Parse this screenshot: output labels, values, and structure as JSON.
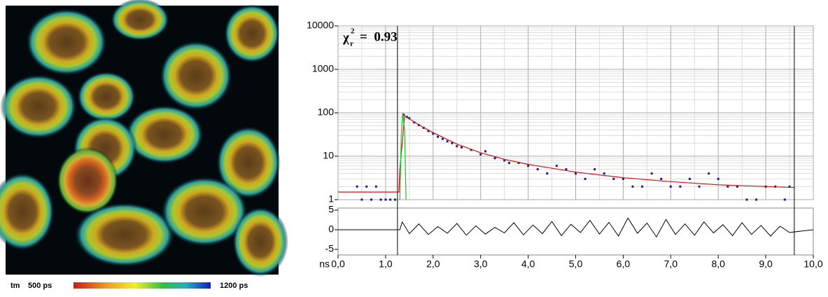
{
  "chart_data": {
    "type": "scatter",
    "annotation_symbol": "χ",
    "annotation_sub": "r",
    "annotation_sup": "2",
    "annotation_text": "=  0.93",
    "xlabel": "ns",
    "xlim": [
      0,
      10
    ],
    "xticks": [
      {
        "value": 0,
        "label": "0,0"
      },
      {
        "value": 1,
        "label": "1,0"
      },
      {
        "value": 2,
        "label": "2,0"
      },
      {
        "value": 3,
        "label": "3,0"
      },
      {
        "value": 4,
        "label": "4,0"
      },
      {
        "value": 5,
        "label": "5,0"
      },
      {
        "value": 6,
        "label": "6,0"
      },
      {
        "value": 7,
        "label": "7,0"
      },
      {
        "value": 8,
        "label": "8,0"
      },
      {
        "value": 9,
        "label": "9,0"
      },
      {
        "value": 10,
        "label": "10,0"
      }
    ],
    "ylim": [
      1,
      10000
    ],
    "yticks": [
      1,
      10,
      100,
      1000,
      10000
    ],
    "ylog": true,
    "grid": true,
    "cursors": [
      1.25,
      9.6
    ],
    "series": [
      {
        "color": "#1c1c8e",
        "style": "points",
        "x": [
          0.4,
          0.5,
          0.6,
          0.7,
          0.8,
          0.9,
          1.0,
          1.1,
          1.2,
          1.38,
          1.45,
          1.5,
          1.6,
          1.7,
          1.8,
          1.9,
          2.0,
          2.1,
          2.2,
          2.3,
          2.4,
          2.5,
          2.6,
          2.8,
          3.0,
          3.1,
          3.3,
          3.5,
          3.6,
          3.8,
          4.0,
          4.2,
          4.4,
          4.6,
          4.8,
          5.0,
          5.2,
          5.4,
          5.6,
          5.8,
          6.0,
          6.2,
          6.4,
          6.6,
          6.8,
          7.0,
          7.2,
          7.4,
          7.6,
          7.8,
          8.0,
          8.2,
          8.4,
          8.6,
          8.8,
          9.0,
          9.2,
          9.4,
          9.5
        ],
        "values": [
          2,
          1,
          2,
          1,
          2,
          1,
          1,
          1,
          1,
          90,
          80,
          75,
          60,
          52,
          45,
          38,
          33,
          28,
          25,
          22,
          20,
          17,
          16,
          14,
          11,
          13,
          9,
          8,
          7,
          7,
          6,
          5,
          4,
          6,
          5,
          4,
          3,
          5,
          4,
          3,
          3,
          2,
          2,
          4,
          3,
          2,
          2,
          3,
          2,
          4,
          3,
          2,
          2,
          1,
          1,
          2,
          2,
          1,
          2
        ]
      },
      {
        "color": "#d01010",
        "style": "line",
        "x": [
          0,
          1.28,
          1.3,
          1.4,
          1.6,
          1.8,
          2.0,
          2.5,
          3.0,
          3.5,
          4.0,
          5.0,
          6.0,
          7.0,
          8.0,
          9.0,
          9.6
        ],
        "values": [
          1.5,
          1.5,
          5,
          85,
          62,
          46,
          35,
          19,
          12,
          8.5,
          6.5,
          4.3,
          3.2,
          2.6,
          2.2,
          2,
          1.9
        ]
      },
      {
        "color": "#20c020",
        "style": "line",
        "x": [
          1.3,
          1.33,
          1.36,
          1.4,
          1.43
        ],
        "values": [
          1,
          30,
          100,
          40,
          1
        ]
      }
    ],
    "residuals": {
      "ylim": [
        -5,
        5
      ],
      "yticks": [
        -5,
        0,
        5
      ],
      "color": "#000000",
      "x": [
        0,
        1.3,
        1.35,
        1.5,
        1.7,
        1.9,
        2.1,
        2.3,
        2.5,
        2.7,
        2.9,
        3.1,
        3.3,
        3.5,
        3.7,
        3.9,
        4.1,
        4.3,
        4.5,
        4.7,
        4.9,
        5.1,
        5.3,
        5.5,
        5.7,
        5.9,
        6.1,
        6.3,
        6.5,
        6.7,
        6.9,
        7.1,
        7.3,
        7.5,
        7.7,
        7.9,
        8.1,
        8.3,
        8.5,
        8.7,
        8.9,
        9.1,
        9.3,
        9.5,
        10
      ],
      "values": [
        0,
        0,
        2,
        -1,
        1.5,
        -1.2,
        0.8,
        -0.9,
        1.6,
        -1.4,
        1,
        -1.1,
        0.6,
        -0.8,
        1.8,
        -1.3,
        1.2,
        -1,
        2.1,
        -1.5,
        1.4,
        -0.7,
        2.4,
        -1.1,
        1.9,
        -1.6,
        3,
        -0.9,
        1.7,
        -1.8,
        2.6,
        -1.2,
        1.5,
        -1.4,
        2,
        -0.8,
        1.3,
        -1.5,
        1.8,
        -1.2,
        1.1,
        -1.6,
        0.9,
        -0.7,
        0
      ]
    }
  },
  "colorbar": {
    "label": "tm",
    "min": "500 ps",
    "max": "1200 ps"
  }
}
